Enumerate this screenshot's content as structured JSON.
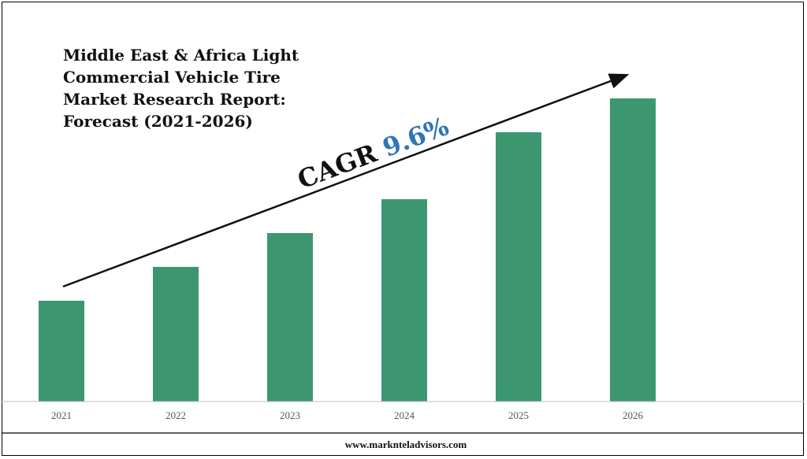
{
  "chart_data": {
    "type": "bar",
    "title_lines": [
      "Middle East & Africa Light",
      "Commercial Vehicle Tire",
      "Market Research Report:",
      "Forecast (2021-2026)"
    ],
    "categories": [
      "2021",
      "2022",
      "2023",
      "2024",
      "2025",
      "2026"
    ],
    "values": [
      128,
      171,
      214,
      257,
      342,
      385
    ],
    "ylim": [
      0,
      400
    ],
    "bar_color": "#3c9770",
    "annotation": {
      "prefix": "CAGR ",
      "value": "9.6%",
      "prefix_color": "#111111",
      "value_color": "#2e75b6"
    },
    "grid": false,
    "legend": "none"
  },
  "footer": {
    "url": "www.marknteladvisors.com"
  }
}
